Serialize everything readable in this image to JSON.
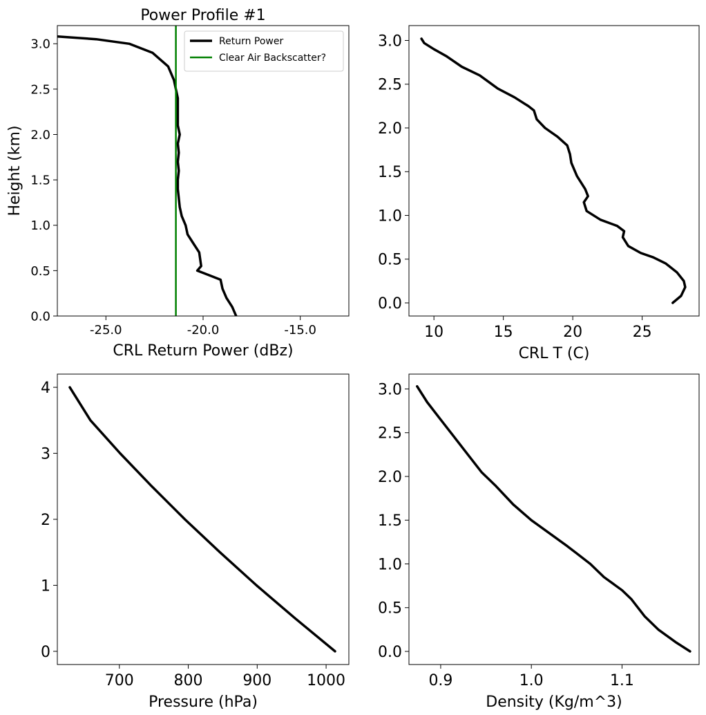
{
  "chart_data": [
    {
      "type": "line",
      "title": "Power Profile #1",
      "xlabel": "CRL Return Power (dBz)",
      "ylabel": "Height (km)",
      "xlim": [
        -27.5,
        -12.5
      ],
      "ylim": [
        0.0,
        3.2
      ],
      "xticks": [
        -25.0,
        -20.0,
        -15.0
      ],
      "xtick_labels": [
        "-25.0",
        "-20.0",
        "-15.0"
      ],
      "yticks": [
        0.0,
        0.5,
        1.0,
        1.5,
        2.0,
        2.5,
        3.0
      ],
      "ytick_labels": [
        "0.0",
        "0.5",
        "1.0",
        "1.5",
        "2.0",
        "2.5",
        "3.0"
      ],
      "grid": false,
      "legend": "top-right",
      "series": [
        {
          "name": "Return Power",
          "color": "#000000",
          "x": [
            -18.3,
            -18.5,
            -18.8,
            -19.0,
            -19.1,
            -19.7,
            -20.3,
            -20.1,
            -20.2,
            -20.5,
            -20.8,
            -20.9,
            -21.1,
            -21.2,
            -21.25,
            -21.3,
            -21.3,
            -21.25,
            -21.3,
            -21.25,
            -21.3,
            -21.2,
            -21.3,
            -21.3,
            -21.3,
            -21.5,
            -21.8,
            -22.6,
            -23.8,
            -25.5,
            -27.5
          ],
          "y": [
            0.0,
            0.1,
            0.2,
            0.3,
            0.4,
            0.45,
            0.5,
            0.55,
            0.7,
            0.8,
            0.9,
            1.0,
            1.1,
            1.2,
            1.3,
            1.4,
            1.5,
            1.6,
            1.7,
            1.8,
            1.9,
            2.0,
            2.1,
            2.2,
            2.4,
            2.6,
            2.75,
            2.9,
            3.0,
            3.05,
            3.08
          ]
        },
        {
          "name": "Clear Air Backscatter?",
          "color": "#008000",
          "x": [
            -21.4,
            -21.4
          ],
          "y": [
            0.0,
            3.2
          ]
        }
      ]
    },
    {
      "type": "line",
      "title": "",
      "xlabel": "CRL T (C)",
      "ylabel": "",
      "xlim": [
        8.2,
        29.1
      ],
      "ylim": [
        -0.15,
        3.17
      ],
      "xticks": [
        10,
        15,
        20,
        25
      ],
      "xtick_labels": [
        "10",
        "15",
        "20",
        "25"
      ],
      "yticks": [
        0.0,
        0.5,
        1.0,
        1.5,
        2.0,
        2.5,
        3.0
      ],
      "ytick_labels": [
        "0.0",
        "0.5",
        "1.0",
        "1.5",
        "2.0",
        "2.5",
        "3.0"
      ],
      "grid": false,
      "series": [
        {
          "color": "#000000",
          "x": [
            27.2,
            27.8,
            28.1,
            28.0,
            27.5,
            26.7,
            25.8,
            24.9,
            24.0,
            23.6,
            23.7,
            23.2,
            22.0,
            21.0,
            20.8,
            21.1,
            20.9,
            20.3,
            19.9,
            19.8,
            19.6,
            18.9,
            18.0,
            17.4,
            17.2,
            16.8,
            15.8,
            14.6,
            13.3,
            12.0,
            10.9,
            10.0,
            9.3,
            9.1
          ],
          "y": [
            0.0,
            0.08,
            0.18,
            0.25,
            0.35,
            0.45,
            0.52,
            0.57,
            0.65,
            0.75,
            0.82,
            0.88,
            0.95,
            1.05,
            1.15,
            1.22,
            1.3,
            1.45,
            1.6,
            1.7,
            1.8,
            1.9,
            2.0,
            2.1,
            2.2,
            2.25,
            2.35,
            2.45,
            2.6,
            2.7,
            2.82,
            2.9,
            2.97,
            3.02
          ]
        }
      ]
    },
    {
      "type": "line",
      "title": "",
      "xlabel": "Pressure (hPa)",
      "ylabel": "",
      "xlim": [
        610,
        1033
      ],
      "ylim": [
        -0.2,
        4.2
      ],
      "xticks": [
        700,
        800,
        900,
        1000
      ],
      "xtick_labels": [
        "700",
        "800",
        "900",
        "1000"
      ],
      "yticks": [
        0,
        1,
        2,
        3,
        4
      ],
      "ytick_labels": [
        "0",
        "1",
        "2",
        "3",
        "4"
      ],
      "grid": false,
      "series": [
        {
          "color": "#000000",
          "x": [
            1013,
            955,
            899,
            846,
            795,
            747,
            701,
            658,
            628
          ],
          "y": [
            0.0,
            0.5,
            1.0,
            1.5,
            2.0,
            2.5,
            3.0,
            3.5,
            4.0
          ]
        }
      ]
    },
    {
      "type": "line",
      "title": "",
      "xlabel": "Density (Kg/m^3)",
      "ylabel": "",
      "xlim": [
        0.865,
        1.185
      ],
      "ylim": [
        -0.15,
        3.17
      ],
      "xticks": [
        0.9,
        1.0,
        1.1
      ],
      "xtick_labels": [
        "0.9",
        "1.0",
        "1.1"
      ],
      "yticks": [
        0.0,
        0.5,
        1.0,
        1.5,
        2.0,
        2.5,
        3.0
      ],
      "ytick_labels": [
        "0.0",
        "0.5",
        "1.0",
        "1.5",
        "2.0",
        "2.5",
        "3.0"
      ],
      "grid": false,
      "series": [
        {
          "color": "#000000",
          "x": [
            1.175,
            1.16,
            1.14,
            1.125,
            1.11,
            1.1,
            1.08,
            1.065,
            1.05,
            1.04,
            1.02,
            1.0,
            0.98,
            0.96,
            0.945,
            0.93,
            0.915,
            0.9,
            0.885,
            0.874
          ],
          "y": [
            0.0,
            0.1,
            0.25,
            0.4,
            0.6,
            0.7,
            0.85,
            1.0,
            1.12,
            1.2,
            1.35,
            1.5,
            1.68,
            1.9,
            2.05,
            2.25,
            2.45,
            2.65,
            2.85,
            3.03
          ]
        }
      ]
    }
  ]
}
